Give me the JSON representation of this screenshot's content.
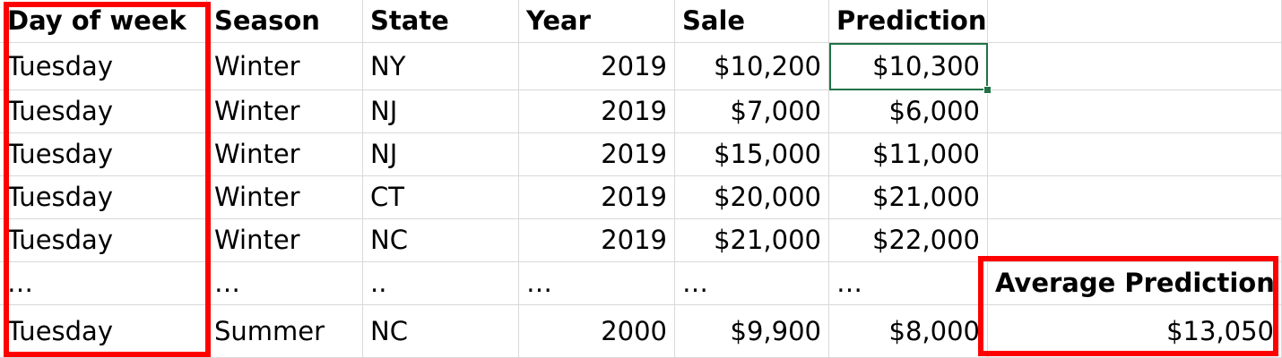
{
  "columns": [
    {
      "key": "day",
      "label": "Day of week",
      "align": "l"
    },
    {
      "key": "season",
      "label": "Season",
      "align": "l"
    },
    {
      "key": "state",
      "label": "State",
      "align": "l"
    },
    {
      "key": "year",
      "label": "Year",
      "align": "l"
    },
    {
      "key": "sale",
      "label": "Sale",
      "align": "l"
    },
    {
      "key": "prediction",
      "label": "Prediction",
      "align": "l"
    }
  ],
  "rows": [
    {
      "day": "Tuesday",
      "season": "Winter",
      "state": "NY",
      "year": "2019",
      "sale": "$10,200",
      "prediction": "$10,300"
    },
    {
      "day": "Tuesday",
      "season": "Winter",
      "state": "NJ",
      "year": "2019",
      "sale": "$7,000",
      "prediction": "$6,000"
    },
    {
      "day": "Tuesday",
      "season": "Winter",
      "state": "NJ",
      "year": "2019",
      "sale": "$15,000",
      "prediction": "$11,000"
    },
    {
      "day": "Tuesday",
      "season": "Winter",
      "state": "CT",
      "year": "2019",
      "sale": "$20,000",
      "prediction": "$21,000"
    },
    {
      "day": "Tuesday",
      "season": "Winter",
      "state": "NC",
      "year": "2019",
      "sale": "$21,000",
      "prediction": "$22,000"
    },
    {
      "day": "…",
      "season": "…",
      "state": "..",
      "year": "…",
      "sale": "…",
      "prediction": "…"
    },
    {
      "day": "Tuesday",
      "season": "Summer",
      "state": "NC",
      "year": "2000",
      "sale": "$9,900",
      "prediction": "$8,000"
    }
  ],
  "summary": {
    "label": "Average Prediction",
    "value": "$13,050"
  },
  "colors": {
    "highlight": "#ff0000",
    "selection": "#217346",
    "gridline": "#d9d9d9"
  }
}
